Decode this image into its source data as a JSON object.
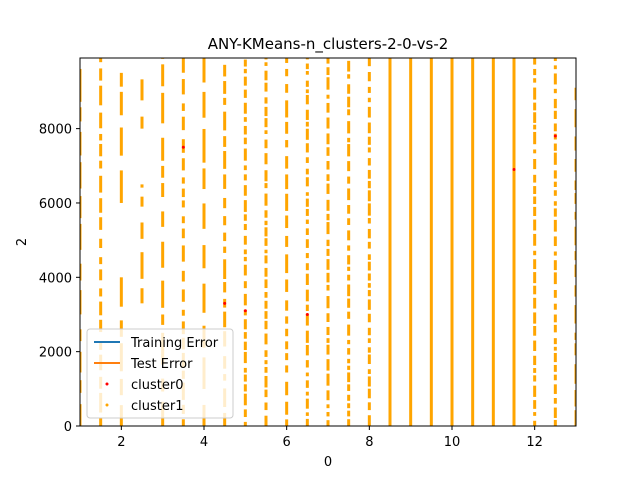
{
  "chart_data": {
    "type": "scatter",
    "title": "ANY-KMeans-n_clusters-2-0-vs-2",
    "xlabel": "0",
    "ylabel": "2",
    "xlim": [
      1.0,
      13.0
    ],
    "ylim": [
      0,
      9900
    ],
    "x_ticks": [
      "2",
      "4",
      "6",
      "8",
      "10",
      "12"
    ],
    "y_ticks": [
      "0",
      "2000",
      "4000",
      "6000",
      "8000"
    ],
    "x_tick_values": [
      2,
      4,
      6,
      8,
      10,
      12
    ],
    "y_tick_values": [
      0,
      2000,
      4000,
      6000,
      8000
    ],
    "grid": false,
    "legend_position": "lower-left",
    "legend": [
      {
        "label": "Training Error",
        "kind": "line",
        "color": "#1f77b4"
      },
      {
        "label": "Test Error",
        "kind": "line",
        "color": "#ff7f0e"
      },
      {
        "label": "cluster0",
        "kind": "marker",
        "color": "#ff0000"
      },
      {
        "label": "cluster1",
        "kind": "marker",
        "color": "#ffa500"
      }
    ],
    "series": [
      {
        "name": "cluster1",
        "color": "#ffa500",
        "columns": [
          {
            "x": 1.0,
            "segments": [
              [
                0,
                9900
              ]
            ],
            "density": "sparse"
          },
          {
            "x": 1.5,
            "segments": [
              [
                0,
                9900
              ]
            ],
            "density": "medium"
          },
          {
            "x": 2.0,
            "segments": [
              [
                0,
                4000
              ],
              [
                6000,
                9500
              ]
            ],
            "density": "sparse"
          },
          {
            "x": 2.5,
            "segments": [
              [
                3300,
                6500
              ],
              [
                8000,
                9500
              ]
            ],
            "density": "sparse"
          },
          {
            "x": 3.0,
            "segments": [
              [
                0,
                9900
              ]
            ],
            "density": "sparse"
          },
          {
            "x": 3.5,
            "segments": [
              [
                0,
                9900
              ]
            ],
            "density": "medium"
          },
          {
            "x": 4.0,
            "segments": [
              [
                0,
                9900
              ]
            ],
            "density": "sparse"
          },
          {
            "x": 4.5,
            "segments": [
              [
                0,
                9900
              ]
            ],
            "density": "medium"
          },
          {
            "x": 5.0,
            "segments": [
              [
                0,
                9900
              ]
            ],
            "density": "dense"
          },
          {
            "x": 5.5,
            "segments": [
              [
                0,
                9900
              ]
            ],
            "density": "dense"
          },
          {
            "x": 6.0,
            "segments": [
              [
                0,
                9900
              ]
            ],
            "density": "medium"
          },
          {
            "x": 6.5,
            "segments": [
              [
                0,
                9900
              ]
            ],
            "density": "dense"
          },
          {
            "x": 7.0,
            "segments": [
              [
                0,
                9900
              ]
            ],
            "density": "dense"
          },
          {
            "x": 7.5,
            "segments": [
              [
                0,
                9900
              ]
            ],
            "density": "dense"
          },
          {
            "x": 8.0,
            "segments": [
              [
                0,
                9900
              ]
            ],
            "density": "dense"
          },
          {
            "x": 8.5,
            "segments": [
              [
                0,
                9900
              ]
            ],
            "density": "solid"
          },
          {
            "x": 9.0,
            "segments": [
              [
                0,
                9900
              ]
            ],
            "density": "solid"
          },
          {
            "x": 9.5,
            "segments": [
              [
                0,
                9900
              ]
            ],
            "density": "solid"
          },
          {
            "x": 10.0,
            "segments": [
              [
                0,
                9900
              ]
            ],
            "density": "solid"
          },
          {
            "x": 10.5,
            "segments": [
              [
                0,
                9900
              ]
            ],
            "density": "solid"
          },
          {
            "x": 11.0,
            "segments": [
              [
                0,
                9900
              ]
            ],
            "density": "solid"
          },
          {
            "x": 11.5,
            "segments": [
              [
                0,
                9900
              ]
            ],
            "density": "solid"
          },
          {
            "x": 12.0,
            "segments": [
              [
                0,
                9900
              ]
            ],
            "density": "dense"
          },
          {
            "x": 12.5,
            "segments": [
              [
                0,
                9900
              ]
            ],
            "density": "dense"
          },
          {
            "x": 13.0,
            "segments": [
              [
                0,
                9100
              ]
            ],
            "density": "medium"
          }
        ]
      },
      {
        "name": "cluster0",
        "color": "#ff0000",
        "points": [
          [
            3.5,
            7500
          ],
          [
            4.5,
            3300
          ],
          [
            11.5,
            6900
          ],
          [
            12.5,
            7800
          ],
          [
            6.5,
            3000
          ],
          [
            5.0,
            3100
          ]
        ]
      }
    ]
  }
}
